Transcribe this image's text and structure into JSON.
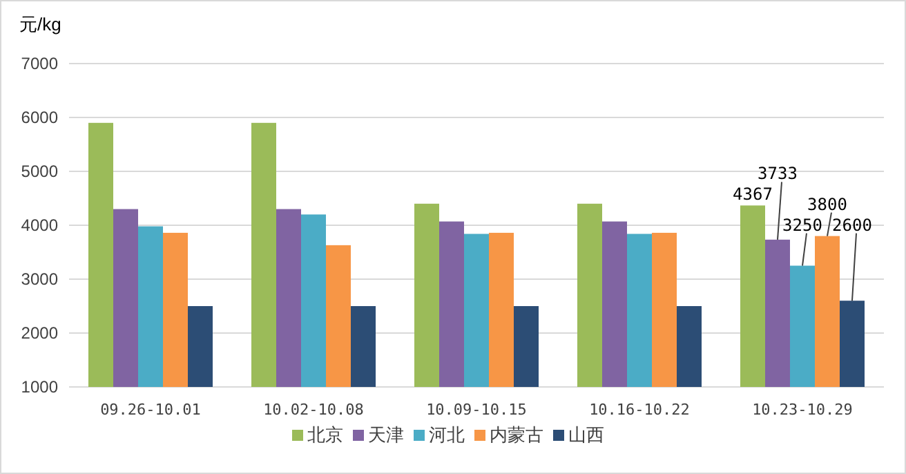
{
  "chart_data": {
    "type": "bar",
    "ylabel": "元/kg",
    "categories": [
      "09.26-10.01",
      "10.02-10.08",
      "10.09-10.15",
      "10.16-10.22",
      "10.23-10.29"
    ],
    "series": [
      {
        "name": "北京",
        "color": "#9bbb59",
        "values": [
          5900,
          5900,
          4400,
          4400,
          4367
        ],
        "value_labels": [
          null,
          null,
          null,
          null,
          "4367"
        ]
      },
      {
        "name": "天津",
        "color": "#8064a2",
        "values": [
          4300,
          4300,
          4070,
          4070,
          3733
        ],
        "value_labels": [
          null,
          null,
          null,
          null,
          "3733"
        ]
      },
      {
        "name": "河北",
        "color": "#4bacc6",
        "values": [
          3980,
          4200,
          3840,
          3840,
          3250
        ],
        "value_labels": [
          null,
          null,
          null,
          null,
          "3250"
        ]
      },
      {
        "name": "内蒙古",
        "color": "#f79646",
        "values": [
          3860,
          3630,
          3860,
          3860,
          3800
        ],
        "value_labels": [
          null,
          null,
          null,
          null,
          "3800"
        ]
      },
      {
        "name": "山西",
        "color": "#2c4d75",
        "values": [
          2500,
          2500,
          2500,
          2500,
          2600
        ],
        "value_labels": [
          null,
          null,
          null,
          null,
          "2600"
        ]
      }
    ],
    "ylim": [
      1000,
      7000
    ],
    "yticks": [
      1000,
      2000,
      3000,
      4000,
      5000,
      6000,
      7000
    ],
    "grid": "y",
    "legend": "bottom"
  }
}
